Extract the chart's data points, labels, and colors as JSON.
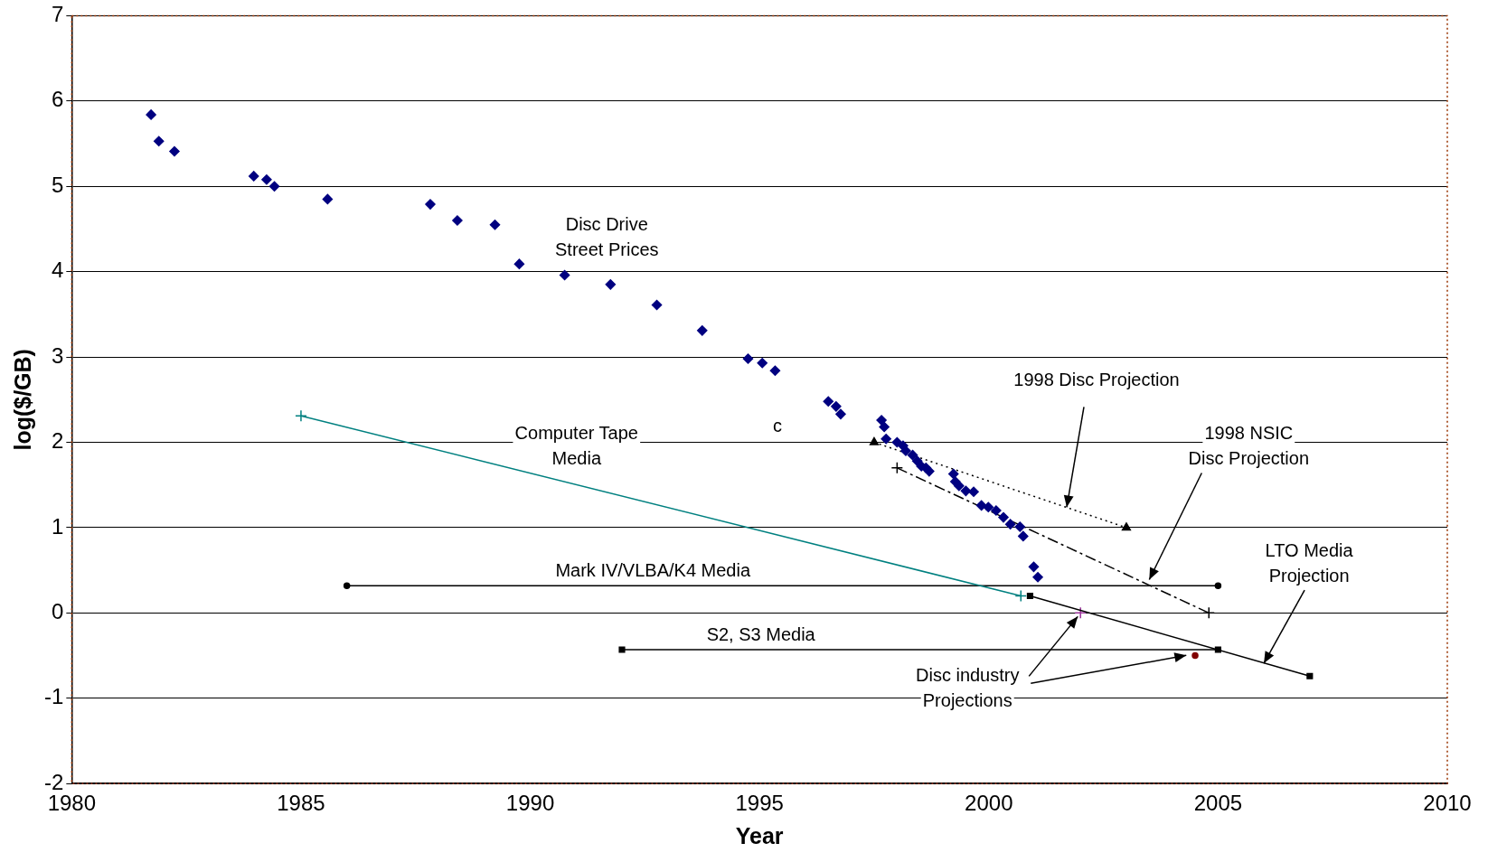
{
  "chart_data": {
    "type": "scatter",
    "xlabel": "Year",
    "ylabel": "log($/GB)",
    "xlim": [
      1980,
      2010
    ],
    "xticks": [
      1980,
      1985,
      1990,
      1995,
      2000,
      2005,
      2010
    ],
    "ylim": [
      -2,
      7
    ],
    "yticks": [
      -2,
      -1,
      0,
      1,
      2,
      3,
      4,
      5,
      6,
      7
    ],
    "grid": "y",
    "legend": false,
    "series": [
      {
        "marker": "diamond",
        "color": "#000080",
        "x": [
          1981.73,
          1981.9,
          1982.24,
          1983.97,
          1984.25,
          1984.42,
          1985.58,
          1987.82,
          1988.41,
          1989.23,
          1989.76,
          1990.75,
          1991.75,
          1992.76,
          1993.75,
          1994.75,
          1995.06,
          1995.34,
          1996.5,
          1996.67,
          1996.77,
          1997.66,
          1997.72,
          1997.76,
          1998.0,
          1998.13,
          1998.19,
          1998.34,
          1998.44,
          1998.53,
          1998.63,
          1998.7,
          1999.23,
          1999.27,
          1999.35,
          1999.5,
          1999.67,
          1999.84,
          1999.99,
          2000.16,
          2000.32,
          2000.47,
          2000.68,
          2000.75,
          2000.98,
          2001.07
        ],
        "values": [
          5.84,
          5.53,
          5.41,
          5.12,
          5.08,
          5.0,
          4.85,
          4.79,
          4.6,
          4.55,
          4.09,
          3.96,
          3.85,
          3.61,
          3.31,
          2.98,
          2.93,
          2.84,
          2.48,
          2.42,
          2.33,
          2.26,
          2.18,
          2.04,
          2.0,
          1.96,
          1.9,
          1.85,
          1.78,
          1.72,
          1.7,
          1.66,
          1.63,
          1.54,
          1.49,
          1.43,
          1.42,
          1.26,
          1.24,
          1.2,
          1.12,
          1.04,
          1.01,
          0.9,
          0.54,
          0.42
        ]
      },
      {
        "type": "line",
        "marker": "cross",
        "line_style": "solid",
        "color": "#008080",
        "x": [
          1985.0,
          2000.7
        ],
        "values": [
          2.31,
          0.2
        ]
      },
      {
        "type": "line",
        "marker": "triangle",
        "line_style": "dotted",
        "color": "#000000",
        "x": [
          1997.5,
          2003.0
        ],
        "values": [
          2.0,
          1.0
        ]
      },
      {
        "type": "line",
        "marker": "cross",
        "line_style": "dashed",
        "color": "#000000",
        "x": [
          1998.0,
          2004.8
        ],
        "values": [
          1.7,
          0.0
        ]
      },
      {
        "type": "line",
        "marker": "circle",
        "line_style": "solid",
        "color": "#000000",
        "x": [
          1986.0,
          2005.0
        ],
        "values": [
          0.32,
          0.32
        ]
      },
      {
        "type": "line",
        "marker": "square",
        "line_style": "solid",
        "color": "#000000",
        "x": [
          1992.0,
          2005.0
        ],
        "values": [
          -0.43,
          -0.43
        ]
      },
      {
        "type": "line",
        "marker": "square",
        "line_style": "solid",
        "color": "#000000",
        "x": [
          2000.9,
          2007.0
        ],
        "values": [
          0.2,
          -0.74
        ]
      },
      {
        "marker": "cross",
        "color": "#993399",
        "x": [
          2002.0
        ],
        "values": [
          0.0
        ]
      },
      {
        "marker": "circle",
        "color": "#800000",
        "x": [
          2004.5
        ],
        "values": [
          -0.5
        ]
      }
    ],
    "annotations": [
      "Disc Drive\nStreet Prices",
      "c",
      "Computer Tape\nMedia",
      {
        "text": "1998 Disc Projection",
        "x": 2001.7,
        "y": 1.24
      },
      {
        "text": "1998 NSIC\nDisc Projection",
        "x": 2003.5,
        "y": 0.39
      },
      "Mark IV/VLBA/K4 Media",
      "S2, S3 Media",
      {
        "text": "LTO Media\nProjection",
        "x": 2006.0,
        "y": -0.59
      },
      {
        "text": "Disc industry\nProjections",
        "x": 2002.0,
        "y": 0.0
      }
    ]
  }
}
